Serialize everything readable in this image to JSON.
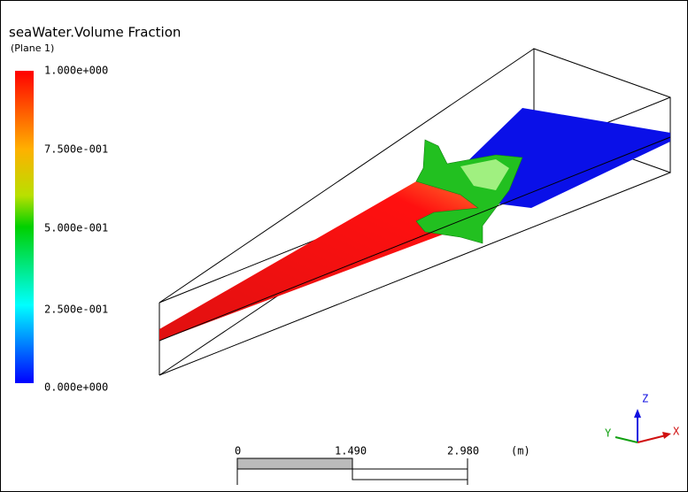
{
  "header": {
    "title": "seaWater.Volume Fraction",
    "subtitle": "(Plane 1)"
  },
  "legend": {
    "labels": [
      "1.000e+000",
      "7.500e-001",
      "5.000e-001",
      "2.500e-001",
      "0.000e+000"
    ]
  },
  "scale_bar": {
    "labels": [
      "0",
      "1.490",
      "2.980"
    ],
    "unit": "(m)"
  },
  "triad": {
    "x": "X",
    "y": "Y",
    "z": "Z"
  }
}
